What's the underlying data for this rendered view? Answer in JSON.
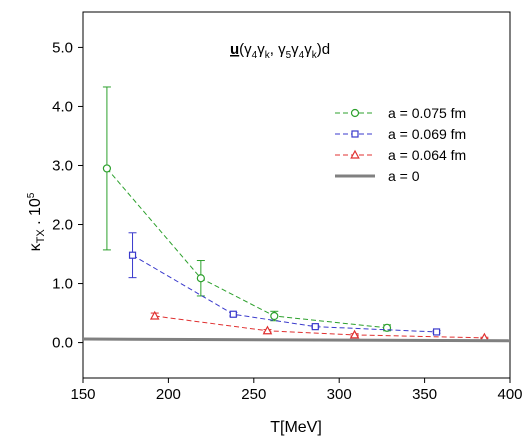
{
  "chart_data": {
    "type": "line",
    "title_parts": {
      "u": "u",
      "open": "(γ",
      "s4a": "4",
      "g1": "γ",
      "sk1": "k",
      "mid": ", γ",
      "s5": "5",
      "g2": "γ",
      "s4b": "4",
      "g3": "γ",
      "sk2": "k",
      "close": ")d"
    },
    "xlabel": "T[MeV]",
    "ylabel_parts": {
      "kappa": "κ",
      "sub": "TX",
      "dot": " . 10",
      "exp": "5"
    },
    "xlim": [
      150,
      400
    ],
    "ylim": [
      -0.6,
      5.6
    ],
    "xticks": [
      150,
      200,
      250,
      300,
      350,
      400
    ],
    "yticks": [
      0.0,
      1.0,
      2.0,
      3.0,
      4.0,
      5.0
    ],
    "xtick_labels": [
      "150",
      "200",
      "250",
      "300",
      "350",
      "400"
    ],
    "ytick_labels": [
      "0.0",
      "1.0",
      "2.0",
      "3.0",
      "4.0",
      "5.0"
    ],
    "grid": false,
    "legend_position": "top-right",
    "series": [
      {
        "name": "a = 0.075 fm",
        "color": "#2ca02c",
        "marker": "circle",
        "line_style": "dashed",
        "points": [
          {
            "x": 164,
            "y": 2.95,
            "err": 1.38
          },
          {
            "x": 219,
            "y": 1.09,
            "err": 0.3
          },
          {
            "x": 262,
            "y": 0.45,
            "err": 0.08
          },
          {
            "x": 328,
            "y": 0.25,
            "err": 0.05
          }
        ]
      },
      {
        "name": "a = 0.069 fm",
        "color": "#3a3acc",
        "marker": "square",
        "line_style": "dashed",
        "points": [
          {
            "x": 179,
            "y": 1.48,
            "err": 0.38
          },
          {
            "x": 238,
            "y": 0.48,
            "err": 0.03
          },
          {
            "x": 286,
            "y": 0.27,
            "err": 0.02
          },
          {
            "x": 357,
            "y": 0.18,
            "err": 0.02
          }
        ]
      },
      {
        "name": "a = 0.064 fm",
        "color": "#e03030",
        "marker": "triangle",
        "line_style": "dashed",
        "points": [
          {
            "x": 192,
            "y": 0.45,
            "err": 0.05
          },
          {
            "x": 258,
            "y": 0.2,
            "err": 0.02
          },
          {
            "x": 309,
            "y": 0.13,
            "err": 0.02
          },
          {
            "x": 385,
            "y": 0.08,
            "err": 0.01
          }
        ]
      },
      {
        "name": "a = 0",
        "color": "#808080",
        "marker": "none",
        "line_style": "solid",
        "points": [
          {
            "x": 150,
            "y": 0.06
          },
          {
            "x": 400,
            "y": 0.03
          }
        ]
      }
    ]
  }
}
